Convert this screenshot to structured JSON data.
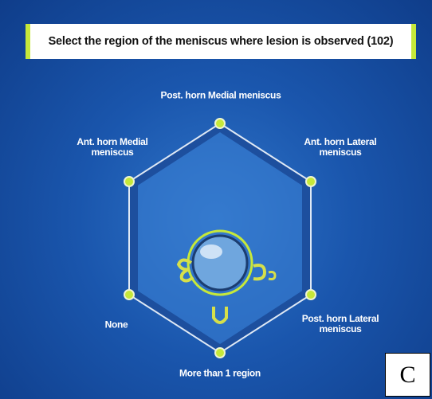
{
  "header": {
    "title": "Select the region of the meniscus where lesion is observed (102)"
  },
  "options": [
    {
      "label": "Post. horn Medial meniscus"
    },
    {
      "label": "Ant. horn Lateral meniscus"
    },
    {
      "label": "Post. horn Lateral meniscus"
    },
    {
      "label": "More than 1 region"
    },
    {
      "label": "None"
    },
    {
      "label": "Ant. horn Medial meniscus"
    }
  ],
  "panel_label": "C"
}
